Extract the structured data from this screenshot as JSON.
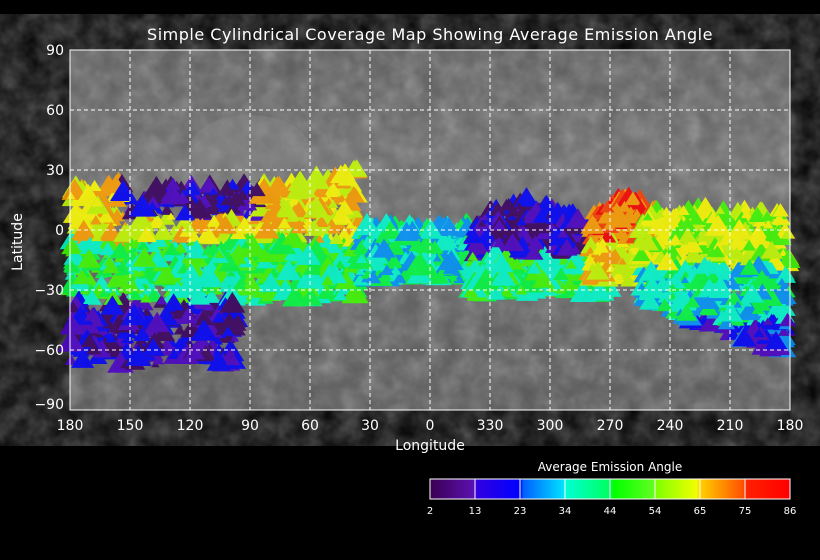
{
  "title": "Simple Cylindrical Coverage Map Showing Average Emission Angle",
  "chart_data": {
    "type": "heatmap",
    "title": "Simple Cylindrical Coverage Map Showing Average Emission Angle",
    "xlabel": "Longitude",
    "ylabel": "Latitude",
    "x_ticks": [
      "180",
      "150",
      "120",
      "90",
      "60",
      "30",
      "0",
      "330",
      "300",
      "270",
      "240",
      "210",
      "180"
    ],
    "y_ticks": [
      "90",
      "60",
      "30",
      "0",
      "−30",
      "−60",
      "−90"
    ],
    "ylim": [
      -90,
      90
    ],
    "grid": true,
    "colorbar": {
      "title": "Average Emission Angle",
      "ticks": [
        "2",
        "13",
        "23",
        "34",
        "44",
        "54",
        "65",
        "75",
        "86"
      ],
      "range": [
        2,
        86
      ],
      "colors": [
        "#3a0060",
        "#4b00c8",
        "#0000ff",
        "#0096ff",
        "#00ffd0",
        "#00ff40",
        "#40ff00",
        "#c8ff00",
        "#ffff00",
        "#ffa000",
        "#ff4000",
        "#ff0000"
      ]
    }
  }
}
